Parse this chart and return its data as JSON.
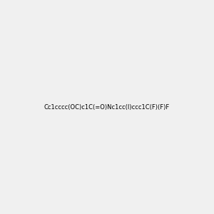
{
  "smiles": "Cc1cccc(OC)c1C(=O)Nc1cc(I)ccc1C(F)(F)F",
  "title": "",
  "background_color": "#f0f0f0",
  "bond_color": "#2d6e4e",
  "figsize": [
    3.0,
    3.0
  ],
  "dpi": 100,
  "atom_colors": {
    "O": "#ff0000",
    "N": "#0000cc",
    "F": "#cc00cc",
    "I": "#cc00cc",
    "C": "#2d6e4e",
    "H": "#2d6e4e"
  }
}
